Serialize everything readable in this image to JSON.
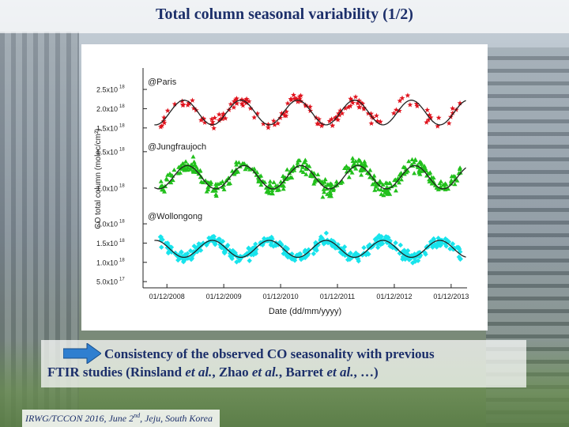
{
  "slide": {
    "title": "Total column seasonal variability (1/2)",
    "caption_line1": "Consistency of the observed CO seasonality with previous",
    "caption_line2_a": "FTIR studies (Rinsland ",
    "caption_line2_b": "et al.",
    "caption_line2_c": ", Zhao ",
    "caption_line2_d": "et al.",
    "caption_line2_e": ", Barret ",
    "caption_line2_f": "et al.",
    "caption_line2_g": ", …)",
    "footer_a": "IRWG/TCCON 2016, June 2",
    "footer_sup": "nd",
    "footer_b": ", Jeju, South Korea",
    "arrow_color": "#2f7fd0"
  },
  "chart_data": {
    "type": "scatter",
    "xlabel": "Date (dd/mm/yyyy)",
    "ylabel": "CO total column (molec/cm²)",
    "x_ticks": [
      "01/12/2008",
      "01/12/2009",
      "01/12/2010",
      "01/12/2011",
      "01/12/2012",
      "01/12/2013"
    ],
    "x_range": [
      2008.5,
      2014.2
    ],
    "panels": [
      {
        "name": "@Paris",
        "color": "#e0141e",
        "marker": "star",
        "ylim": [
          1.25e+18,
          2.85e+18
        ],
        "y_ticks": [
          {
            "v": 1.5e+18,
            "label": "1.5x10"
          },
          {
            "v": 2e+18,
            "label": "2.0x10"
          },
          {
            "v": 2.5e+18,
            "label": "2.5x10"
          }
        ],
        "fit": {
          "mean": 1.9e+18,
          "amplitude": 3.2e+17,
          "peak_phase": 0.22
        }
      },
      {
        "name": "@Jungfraujoch",
        "color": "#22c01c",
        "marker": "triangle",
        "ylim": [
          7.5e+17,
          1.65e+18
        ],
        "y_ticks": [
          {
            "v": 1e+18,
            "label": "1.0x10"
          },
          {
            "v": 1.5e+18,
            "label": "1.5x10"
          }
        ],
        "fit": {
          "mean": 1.15e+18,
          "amplitude": 1.6e+17,
          "peak_phase": 0.28
        }
      },
      {
        "name": "@Wollongong",
        "color": "#18e4ec",
        "marker": "diamond",
        "ylim": [
          4e+17,
          2.35e+18
        ],
        "y_ticks": [
          {
            "v": 5e+17,
            "label": "5.0x10"
          },
          {
            "v": 1e+18,
            "label": "1.0x10"
          },
          {
            "v": 1.5e+18,
            "label": "1.5x10"
          },
          {
            "v": 2e+18,
            "label": "2.0x10"
          }
        ],
        "fit": {
          "mean": 1.35e+18,
          "amplitude": 2.2e+17,
          "peak_phase": 0.72
        }
      }
    ]
  }
}
